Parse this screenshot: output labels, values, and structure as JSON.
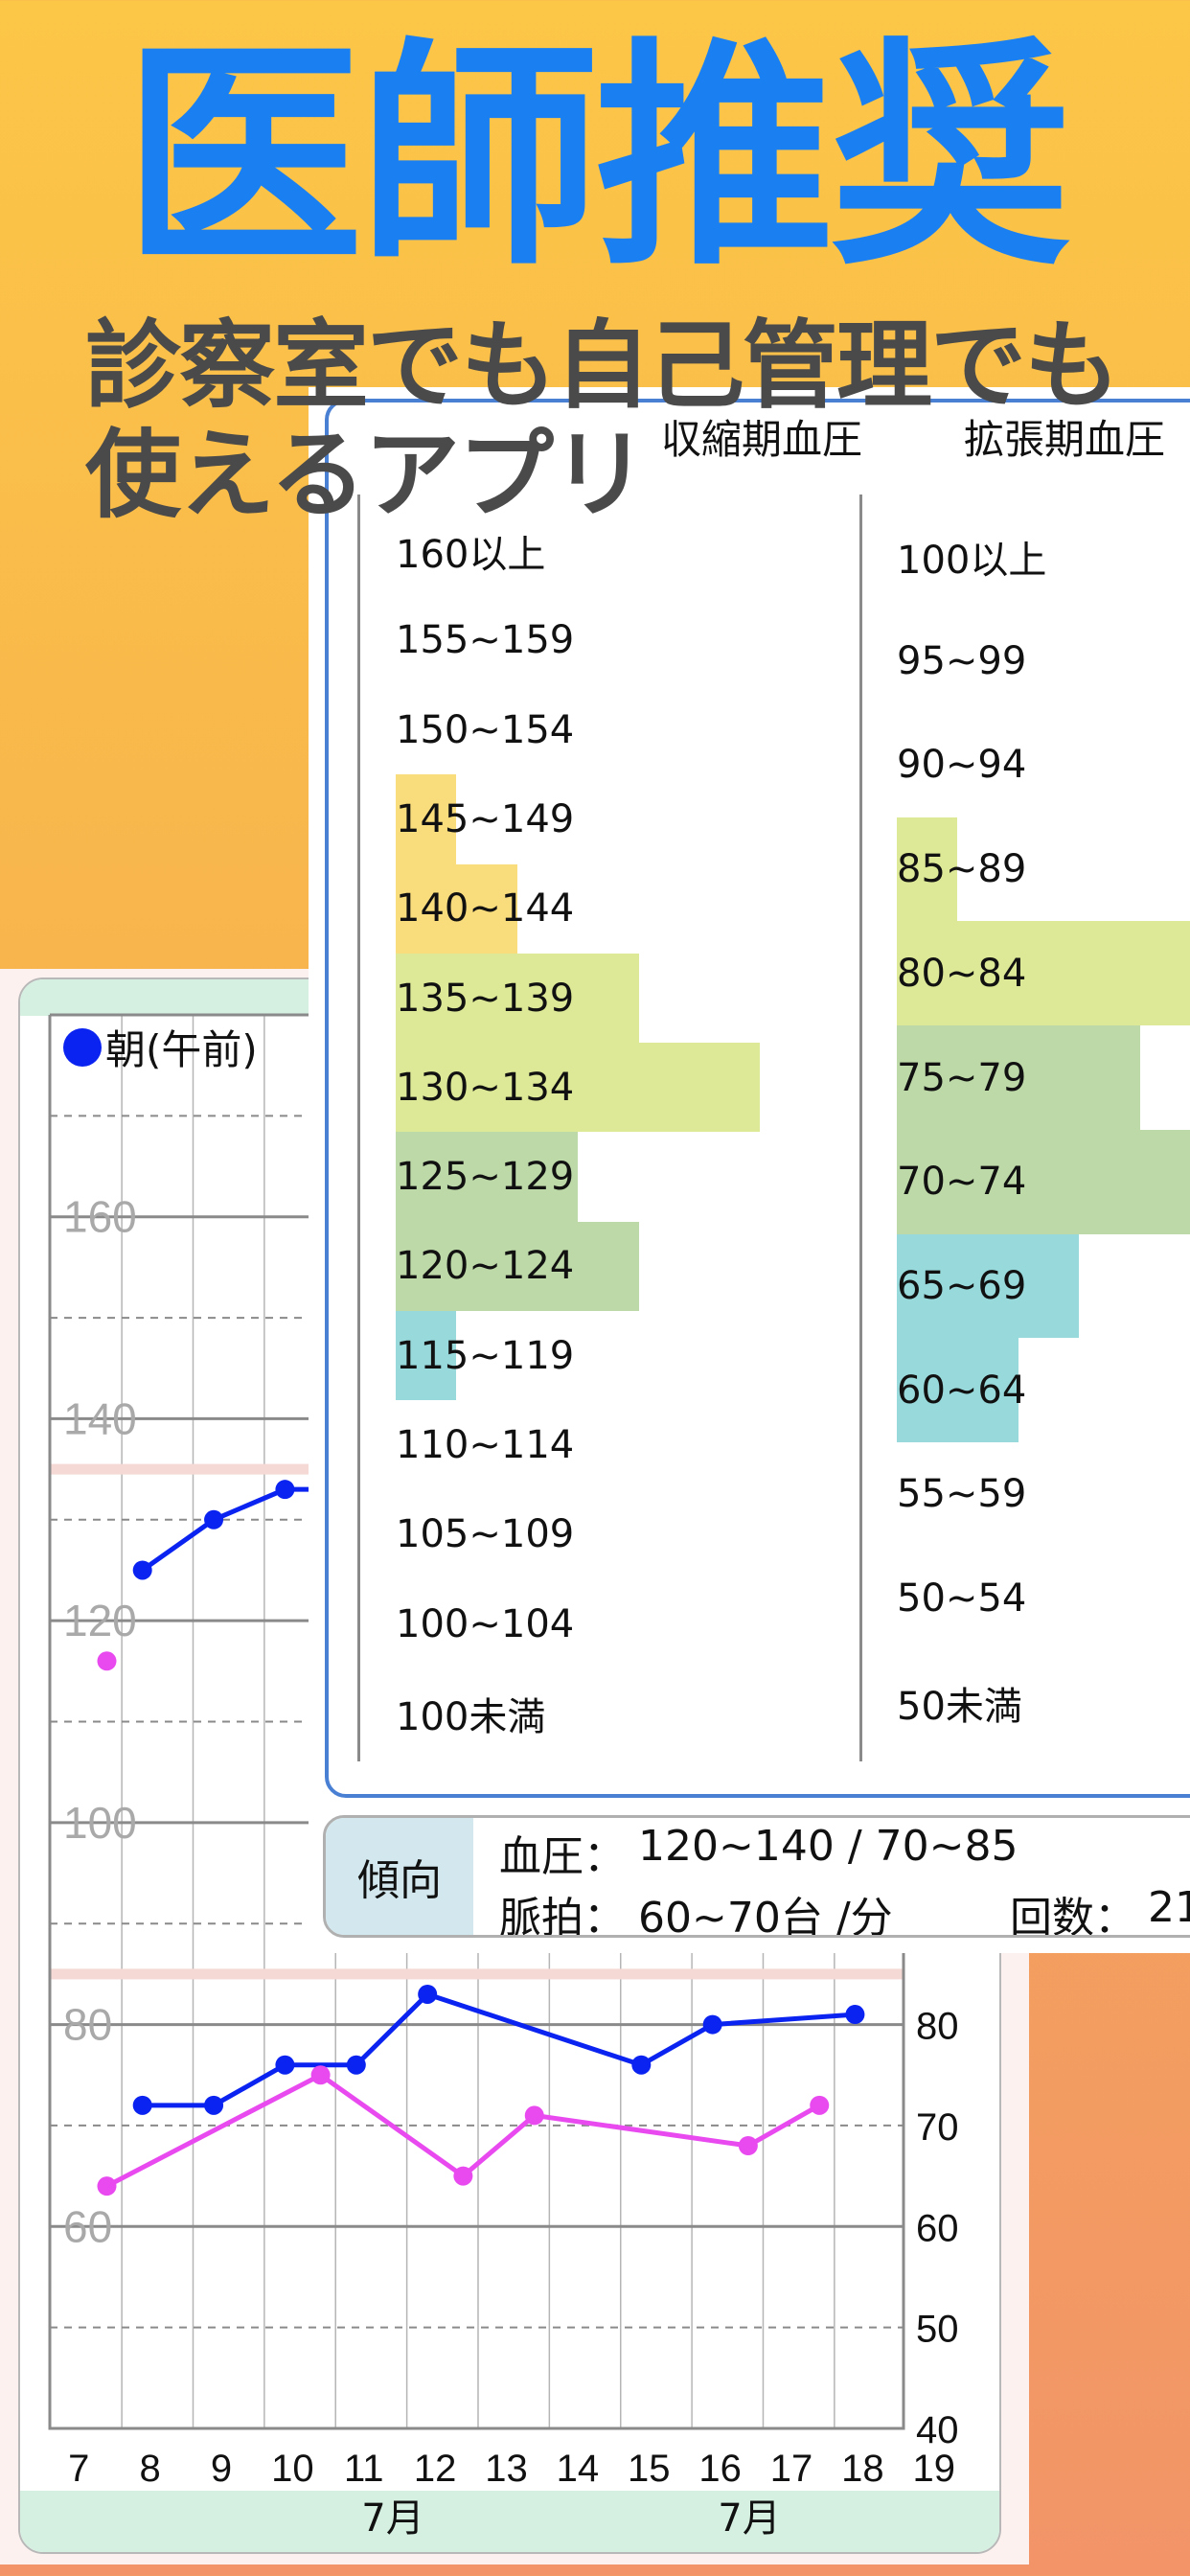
{
  "banner": {
    "title": "医師推奨",
    "subtitle_line1": "診察室でも自己管理でも",
    "subtitle_line2": "使えるアプリ"
  },
  "colors": {
    "title": "#1a80f2",
    "morning_series": "#0a23f0",
    "evening_series": "#e84af0",
    "target_band": "#f4d9d4",
    "panel_border": "#4a80d4",
    "bar_yellow": "#f9dc7c",
    "bar_lime": "#dde996",
    "bar_green": "#bdd9a8",
    "bar_cyan": "#98d9db"
  },
  "histogram": {
    "systolic_header": "収縮期血圧",
    "diastolic_header": "拡張期血圧",
    "systolic": [
      {
        "label": "160以上",
        "count": 0,
        "color": ""
      },
      {
        "label": "155~159",
        "count": 0,
        "color": ""
      },
      {
        "label": "150~154",
        "count": 0,
        "color": ""
      },
      {
        "label": "145~149",
        "count": 1,
        "color": "#f9dc7c"
      },
      {
        "label": "140~144",
        "count": 2,
        "color": "#f9dc7c"
      },
      {
        "label": "135~139",
        "count": 4,
        "color": "#dde996"
      },
      {
        "label": "130~134",
        "count": 6,
        "color": "#dde996"
      },
      {
        "label": "125~129",
        "count": 3,
        "color": "#bdd9a8"
      },
      {
        "label": "120~124",
        "count": 4,
        "color": "#bdd9a8"
      },
      {
        "label": "115~119",
        "count": 1,
        "color": "#98d9db"
      },
      {
        "label": "110~114",
        "count": 0,
        "color": ""
      },
      {
        "label": "105~109",
        "count": 0,
        "color": ""
      },
      {
        "label": "100~104",
        "count": 0,
        "color": ""
      },
      {
        "label": "100未満",
        "count": 0,
        "color": ""
      }
    ],
    "diastolic": [
      {
        "label": "100以上",
        "count": 0,
        "color": ""
      },
      {
        "label": "95~99",
        "count": 0,
        "color": ""
      },
      {
        "label": "90~94",
        "count": 0,
        "color": ""
      },
      {
        "label": "85~89",
        "count": 1,
        "color": "#dde996"
      },
      {
        "label": "80~84",
        "count": 5,
        "color": "#dde996"
      },
      {
        "label": "75~79",
        "count": 4,
        "color": "#bdd9a8"
      },
      {
        "label": "70~74",
        "count": 6,
        "color": "#bdd9a8"
      },
      {
        "label": "65~69",
        "count": 3,
        "color": "#98d9db"
      },
      {
        "label": "60~64",
        "count": 2,
        "color": "#98d9db"
      },
      {
        "label": "55~59",
        "count": 0,
        "color": ""
      },
      {
        "label": "50~54",
        "count": 0,
        "color": ""
      },
      {
        "label": "50未満",
        "count": 0,
        "color": ""
      }
    ]
  },
  "trend": {
    "label": "傾向",
    "bp_label": "血圧：",
    "bp_value": "120~140 / 70~85",
    "pulse_label": "脈拍：",
    "pulse_value": "60~70台 /分",
    "count_label": "回数：",
    "count_value": "21"
  },
  "chart_data": {
    "type": "line",
    "legend": "朝(午前)",
    "ylim": [
      40,
      180
    ],
    "left_yticks": [
      60,
      80,
      100,
      120,
      140,
      160
    ],
    "right_yticks": [
      40,
      50,
      60,
      70,
      80
    ],
    "xticks": [
      7,
      8,
      9,
      10,
      11,
      12,
      13,
      14,
      15,
      16,
      17,
      18,
      19
    ],
    "xlim": [
      6.7,
      18.68
    ],
    "month_labels": [
      "7月",
      "7月"
    ],
    "target_lines": [
      135,
      85
    ],
    "grid": true,
    "series": [
      {
        "group": "blood_pressure",
        "color": "#0a23f0",
        "points": [
          [
            8,
            125
          ],
          [
            9,
            130
          ],
          [
            10,
            133
          ],
          [
            11,
            133
          ]
        ]
      },
      {
        "group": "blood_pressure",
        "color": "#e84af0",
        "points": [
          [
            7.5,
            116
          ]
        ]
      },
      {
        "group": "pulse",
        "color": "#0a23f0",
        "points": [
          [
            8,
            72
          ],
          [
            9,
            72
          ],
          [
            10,
            76
          ],
          [
            11,
            76
          ],
          [
            12,
            83
          ],
          [
            15,
            76
          ],
          [
            16,
            80
          ],
          [
            18,
            81
          ]
        ]
      },
      {
        "group": "pulse",
        "color": "#e84af0",
        "points": [
          [
            7.5,
            64
          ],
          [
            10.5,
            75
          ],
          [
            12.5,
            65
          ],
          [
            13.5,
            71
          ],
          [
            16.5,
            68
          ],
          [
            17.5,
            72
          ]
        ]
      }
    ]
  }
}
